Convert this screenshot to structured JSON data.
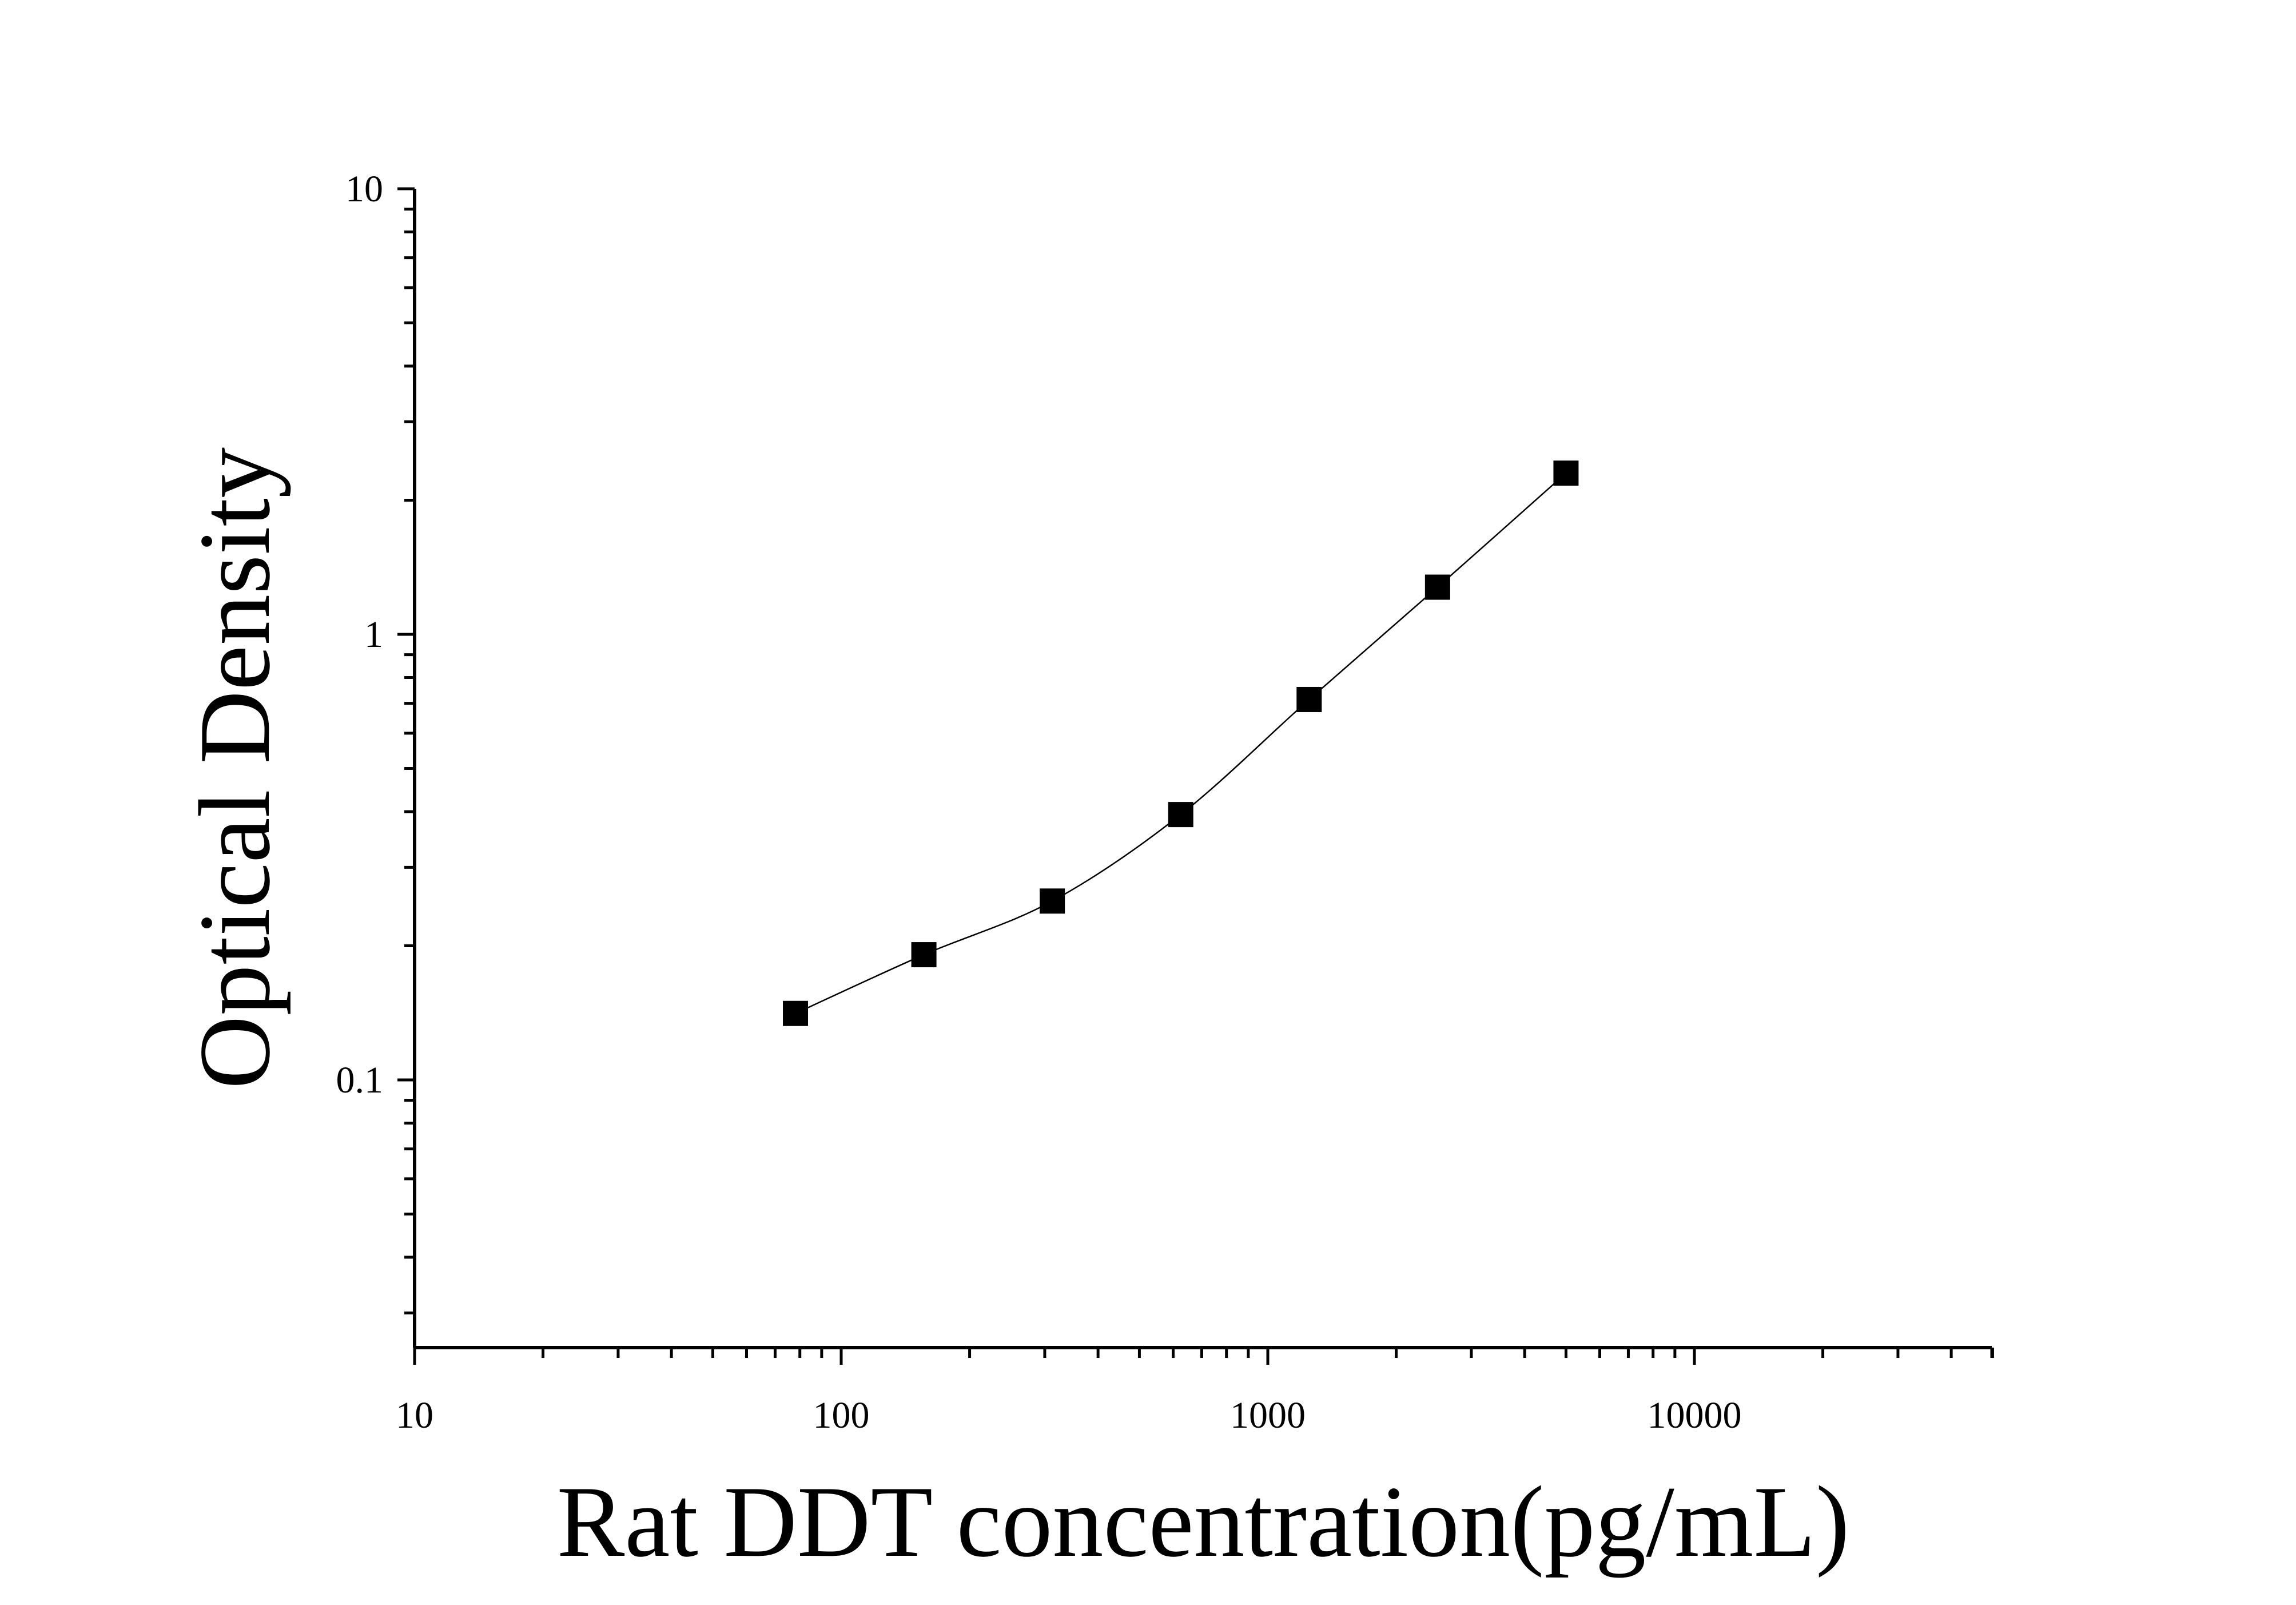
{
  "chart_data": {
    "type": "scatter",
    "title": "",
    "xlabel": "Rat DDT concentration(pg/mL)",
    "ylabel": "Optical Density",
    "x_scale": "log",
    "y_scale": "log",
    "xlim": [
      10,
      50000
    ],
    "ylim": [
      0.025,
      10
    ],
    "x_ticks": [
      10,
      100,
      1000,
      10000
    ],
    "x_tick_labels": [
      "10",
      "100",
      "1000",
      "10000"
    ],
    "y_ticks": [
      0.1,
      1,
      10
    ],
    "y_tick_labels": [
      "0.1",
      "1",
      "10"
    ],
    "grid": false,
    "legend": "none",
    "marker": "square",
    "fit_line": "smooth curve",
    "color": "#000000",
    "series": [
      {
        "x": [
          78.125,
          156.25,
          312.5,
          625,
          1250,
          2500,
          5000
        ],
        "y": [
          0.141,
          0.191,
          0.252,
          0.394,
          0.714,
          1.276,
          2.3
        ]
      }
    ]
  }
}
